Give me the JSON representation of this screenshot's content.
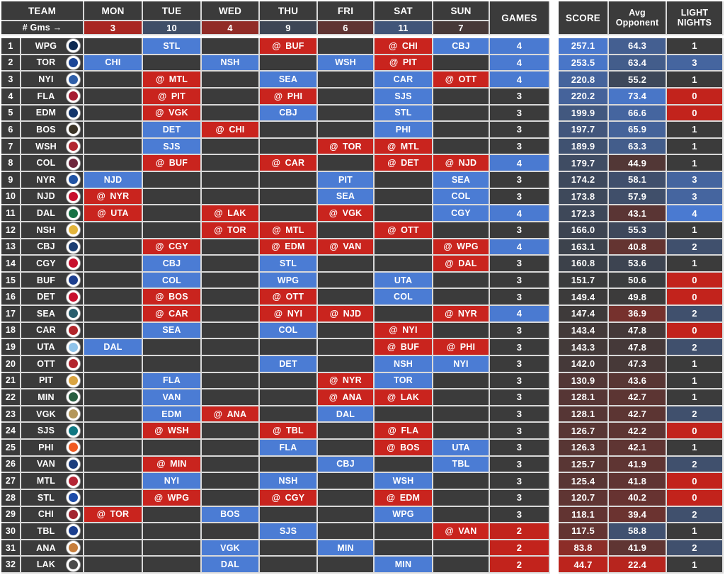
{
  "header": {
    "team_label": "TEAM",
    "gms_label": "# Gms →",
    "days": [
      "MON",
      "TUE",
      "WED",
      "THU",
      "FRI",
      "SAT",
      "SUN"
    ],
    "day_counts": [
      3,
      10,
      4,
      9,
      6,
      11,
      7
    ],
    "games_label": "GAMES",
    "score_label": "SCORE",
    "avg_label_1": "Avg",
    "avg_label_2": "Opponent",
    "light_label_1": "LIGHT",
    "light_label_2": "NIGHTS"
  },
  "colors": {
    "neutral": "#3b3b3b",
    "heat_blue": "#4a7ad1",
    "heat_red": "#c2231c",
    "home_cell": "#4b7cd4",
    "away_cell": "#c9241e",
    "border": "#d9d9d9"
  },
  "rows": [
    {
      "rank": 1,
      "team": "WPG",
      "logo_color": "#0e2a52",
      "sched": [
        null,
        {
          "opp": "STL",
          "away": false
        },
        null,
        {
          "opp": "BUF",
          "away": true
        },
        null,
        {
          "opp": "CHI",
          "away": true
        },
        {
          "opp": "CBJ",
          "away": false
        }
      ],
      "games": 4,
      "score": 257.1,
      "avg_opp": 64.3,
      "light": 1
    },
    {
      "rank": 2,
      "team": "TOR",
      "logo_color": "#1b4597",
      "sched": [
        {
          "opp": "CHI",
          "away": false
        },
        null,
        {
          "opp": "NSH",
          "away": false
        },
        null,
        {
          "opp": "WSH",
          "away": false
        },
        {
          "opp": "PIT",
          "away": true
        },
        null
      ],
      "games": 4,
      "score": 253.5,
      "avg_opp": 63.4,
      "light": 3
    },
    {
      "rank": 3,
      "team": "NYI",
      "logo_color": "#2e5ea8",
      "sched": [
        null,
        {
          "opp": "MTL",
          "away": true
        },
        null,
        {
          "opp": "SEA",
          "away": false
        },
        null,
        {
          "opp": "CAR",
          "away": false
        },
        {
          "opp": "OTT",
          "away": true
        }
      ],
      "games": 4,
      "score": 220.8,
      "avg_opp": 55.2,
      "light": 1
    },
    {
      "rank": 4,
      "team": "FLA",
      "logo_color": "#a61c33",
      "sched": [
        null,
        {
          "opp": "PIT",
          "away": true
        },
        null,
        {
          "opp": "PHI",
          "away": true
        },
        null,
        {
          "opp": "SJS",
          "away": false
        },
        null
      ],
      "games": 3,
      "score": 220.2,
      "avg_opp": 73.4,
      "light": 0
    },
    {
      "rank": 5,
      "team": "EDM",
      "logo_color": "#13356b",
      "sched": [
        null,
        {
          "opp": "VGK",
          "away": true
        },
        null,
        {
          "opp": "CBJ",
          "away": false
        },
        null,
        {
          "opp": "STL",
          "away": false
        },
        null
      ],
      "games": 3,
      "score": 199.9,
      "avg_opp": 66.6,
      "light": 0
    },
    {
      "rank": 6,
      "team": "BOS",
      "logo_color": "#3a3326",
      "sched": [
        null,
        {
          "opp": "DET",
          "away": false
        },
        {
          "opp": "CHI",
          "away": true
        },
        null,
        null,
        {
          "opp": "PHI",
          "away": false
        },
        null
      ],
      "games": 3,
      "score": 197.7,
      "avg_opp": 65.9,
      "light": 1
    },
    {
      "rank": 7,
      "team": "WSH",
      "logo_color": "#b2252f",
      "sched": [
        null,
        {
          "opp": "SJS",
          "away": false
        },
        null,
        null,
        {
          "opp": "TOR",
          "away": true
        },
        {
          "opp": "MTL",
          "away": true
        },
        null
      ],
      "games": 3,
      "score": 189.9,
      "avg_opp": 63.3,
      "light": 1
    },
    {
      "rank": 8,
      "team": "COL",
      "logo_color": "#6f263d",
      "sched": [
        null,
        {
          "opp": "BUF",
          "away": true
        },
        null,
        {
          "opp": "CAR",
          "away": true
        },
        null,
        {
          "opp": "DET",
          "away": true
        },
        {
          "opp": "NJD",
          "away": true
        }
      ],
      "games": 4,
      "score": 179.7,
      "avg_opp": 44.9,
      "light": 1
    },
    {
      "rank": 9,
      "team": "NYR",
      "logo_color": "#2053a4",
      "sched": [
        {
          "opp": "NJD",
          "away": false
        },
        null,
        null,
        null,
        {
          "opp": "PIT",
          "away": false
        },
        null,
        {
          "opp": "SEA",
          "away": false
        }
      ],
      "games": 3,
      "score": 174.2,
      "avg_opp": 58.1,
      "light": 3
    },
    {
      "rank": 10,
      "team": "NJD",
      "logo_color": "#c8102e",
      "sched": [
        {
          "opp": "NYR",
          "away": true
        },
        null,
        null,
        null,
        {
          "opp": "SEA",
          "away": false
        },
        null,
        {
          "opp": "COL",
          "away": false
        }
      ],
      "games": 3,
      "score": 173.8,
      "avg_opp": 57.9,
      "light": 3
    },
    {
      "rank": 11,
      "team": "DAL",
      "logo_color": "#177245",
      "sched": [
        {
          "opp": "UTA",
          "away": true
        },
        null,
        {
          "opp": "LAK",
          "away": true
        },
        null,
        {
          "opp": "VGK",
          "away": true
        },
        null,
        {
          "opp": "CGY",
          "away": false
        }
      ],
      "games": 4,
      "score": 172.3,
      "avg_opp": 43.1,
      "light": 4
    },
    {
      "rank": 12,
      "team": "NSH",
      "logo_color": "#e2b43b",
      "sched": [
        null,
        null,
        {
          "opp": "TOR",
          "away": true
        },
        {
          "opp": "MTL",
          "away": true
        },
        null,
        {
          "opp": "OTT",
          "away": true
        },
        null
      ],
      "games": 3,
      "score": 166.0,
      "avg_opp": 55.3,
      "light": 1
    },
    {
      "rank": 13,
      "team": "CBJ",
      "logo_color": "#1b3e73",
      "sched": [
        null,
        {
          "opp": "CGY",
          "away": true
        },
        null,
        {
          "opp": "EDM",
          "away": true
        },
        {
          "opp": "VAN",
          "away": true
        },
        null,
        {
          "opp": "WPG",
          "away": true
        }
      ],
      "games": 4,
      "score": 163.1,
      "avg_opp": 40.8,
      "light": 2
    },
    {
      "rank": 14,
      "team": "CGY",
      "logo_color": "#c8102e",
      "sched": [
        null,
        {
          "opp": "CBJ",
          "away": false
        },
        null,
        {
          "opp": "STL",
          "away": false
        },
        null,
        null,
        {
          "opp": "DAL",
          "away": true
        }
      ],
      "games": 3,
      "score": 160.8,
      "avg_opp": 53.6,
      "light": 1
    },
    {
      "rank": 15,
      "team": "BUF",
      "logo_color": "#1c3e8e",
      "sched": [
        null,
        {
          "opp": "COL",
          "away": false
        },
        null,
        {
          "opp": "WPG",
          "away": false
        },
        null,
        {
          "opp": "UTA",
          "away": false
        },
        null
      ],
      "games": 3,
      "score": 151.7,
      "avg_opp": 50.6,
      "light": 0
    },
    {
      "rank": 16,
      "team": "DET",
      "logo_color": "#c8102e",
      "sched": [
        null,
        {
          "opp": "BOS",
          "away": true
        },
        null,
        {
          "opp": "OTT",
          "away": true
        },
        null,
        {
          "opp": "COL",
          "away": false
        },
        null
      ],
      "games": 3,
      "score": 149.4,
      "avg_opp": 49.8,
      "light": 0
    },
    {
      "rank": 17,
      "team": "SEA",
      "logo_color": "#2a5f6e",
      "sched": [
        null,
        {
          "opp": "CAR",
          "away": true
        },
        null,
        {
          "opp": "NYI",
          "away": true
        },
        {
          "opp": "NJD",
          "away": true
        },
        null,
        {
          "opp": "NYR",
          "away": true
        }
      ],
      "games": 4,
      "score": 147.4,
      "avg_opp": 36.9,
      "light": 2
    },
    {
      "rank": 18,
      "team": "CAR",
      "logo_color": "#b0252a",
      "sched": [
        null,
        {
          "opp": "SEA",
          "away": false
        },
        null,
        {
          "opp": "COL",
          "away": false
        },
        null,
        {
          "opp": "NYI",
          "away": true
        },
        null
      ],
      "games": 3,
      "score": 143.4,
      "avg_opp": 47.8,
      "light": 0
    },
    {
      "rank": 19,
      "team": "UTA",
      "logo_color": "#8fc3ea",
      "sched": [
        {
          "opp": "DAL",
          "away": false
        },
        null,
        null,
        null,
        null,
        {
          "opp": "BUF",
          "away": true
        },
        {
          "opp": "PHI",
          "away": true
        }
      ],
      "games": 3,
      "score": 143.3,
      "avg_opp": 47.8,
      "light": 2
    },
    {
      "rank": 20,
      "team": "OTT",
      "logo_color": "#b3252e",
      "sched": [
        null,
        null,
        null,
        {
          "opp": "DET",
          "away": false
        },
        null,
        {
          "opp": "NSH",
          "away": false
        },
        {
          "opp": "NYI",
          "away": false
        }
      ],
      "games": 3,
      "score": 142.0,
      "avg_opp": 47.3,
      "light": 1
    },
    {
      "rank": 21,
      "team": "PIT",
      "logo_color": "#d9a441",
      "sched": [
        null,
        {
          "opp": "FLA",
          "away": false
        },
        null,
        null,
        {
          "opp": "NYR",
          "away": true
        },
        {
          "opp": "TOR",
          "away": false
        },
        null
      ],
      "games": 3,
      "score": 130.9,
      "avg_opp": 43.6,
      "light": 1
    },
    {
      "rank": 22,
      "team": "MIN",
      "logo_color": "#275d40",
      "sched": [
        null,
        {
          "opp": "VAN",
          "away": false
        },
        null,
        null,
        {
          "opp": "ANA",
          "away": true
        },
        {
          "opp": "LAK",
          "away": true
        },
        null
      ],
      "games": 3,
      "score": 128.1,
      "avg_opp": 42.7,
      "light": 1
    },
    {
      "rank": 23,
      "team": "VGK",
      "logo_color": "#b4975a",
      "sched": [
        null,
        {
          "opp": "EDM",
          "away": false
        },
        {
          "opp": "ANA",
          "away": true
        },
        null,
        {
          "opp": "DAL",
          "away": false
        },
        null,
        null
      ],
      "games": 3,
      "score": 128.1,
      "avg_opp": 42.7,
      "light": 2
    },
    {
      "rank": 24,
      "team": "SJS",
      "logo_color": "#0e7782",
      "sched": [
        null,
        {
          "opp": "WSH",
          "away": true
        },
        null,
        {
          "opp": "TBL",
          "away": true
        },
        null,
        {
          "opp": "FLA",
          "away": true
        },
        null
      ],
      "games": 3,
      "score": 126.7,
      "avg_opp": 42.2,
      "light": 0
    },
    {
      "rank": 25,
      "team": "PHI",
      "logo_color": "#f05a22",
      "sched": [
        null,
        null,
        null,
        {
          "opp": "FLA",
          "away": false
        },
        null,
        {
          "opp": "BOS",
          "away": true
        },
        {
          "opp": "UTA",
          "away": false
        }
      ],
      "games": 3,
      "score": 126.3,
      "avg_opp": 42.1,
      "light": 1
    },
    {
      "rank": 26,
      "team": "VAN",
      "logo_color": "#1c3e7e",
      "sched": [
        null,
        {
          "opp": "MIN",
          "away": true
        },
        null,
        null,
        {
          "opp": "CBJ",
          "away": false
        },
        null,
        {
          "opp": "TBL",
          "away": false
        }
      ],
      "games": 3,
      "score": 125.7,
      "avg_opp": 41.9,
      "light": 2
    },
    {
      "rank": 27,
      "team": "MTL",
      "logo_color": "#b52535",
      "sched": [
        null,
        {
          "opp": "NYI",
          "away": false
        },
        null,
        {
          "opp": "NSH",
          "away": false
        },
        null,
        {
          "opp": "WSH",
          "away": false
        },
        null
      ],
      "games": 3,
      "score": 125.4,
      "avg_opp": 41.8,
      "light": 0
    },
    {
      "rank": 28,
      "team": "STL",
      "logo_color": "#1c4ba8",
      "sched": [
        null,
        {
          "opp": "WPG",
          "away": true
        },
        null,
        {
          "opp": "CGY",
          "away": true
        },
        null,
        {
          "opp": "EDM",
          "away": true
        },
        null
      ],
      "games": 3,
      "score": 120.7,
      "avg_opp": 40.2,
      "light": 0
    },
    {
      "rank": 29,
      "team": "CHI",
      "logo_color": "#a32430",
      "sched": [
        {
          "opp": "TOR",
          "away": true
        },
        null,
        {
          "opp": "BOS",
          "away": false
        },
        null,
        null,
        {
          "opp": "WPG",
          "away": false
        },
        null
      ],
      "games": 3,
      "score": 118.1,
      "avg_opp": 39.4,
      "light": 2
    },
    {
      "rank": 30,
      "team": "TBL",
      "logo_color": "#1b3e8e",
      "sched": [
        null,
        null,
        null,
        {
          "opp": "SJS",
          "away": false
        },
        null,
        null,
        {
          "opp": "VAN",
          "away": true
        }
      ],
      "games": 2,
      "score": 117.5,
      "avg_opp": 58.8,
      "light": 1
    },
    {
      "rank": 31,
      "team": "ANA",
      "logo_color": "#c77e3c",
      "sched": [
        null,
        null,
        {
          "opp": "VGK",
          "away": false
        },
        null,
        {
          "opp": "MIN",
          "away": false
        },
        null,
        null
      ],
      "games": 2,
      "score": 83.8,
      "avg_opp": 41.9,
      "light": 2
    },
    {
      "rank": 32,
      "team": "LAK",
      "logo_color": "#4a4a4a",
      "sched": [
        null,
        null,
        {
          "opp": "DAL",
          "away": false
        },
        null,
        null,
        {
          "opp": "MIN",
          "away": false
        },
        null
      ],
      "games": 2,
      "score": 44.7,
      "avg_opp": 22.4,
      "light": 1
    }
  ]
}
